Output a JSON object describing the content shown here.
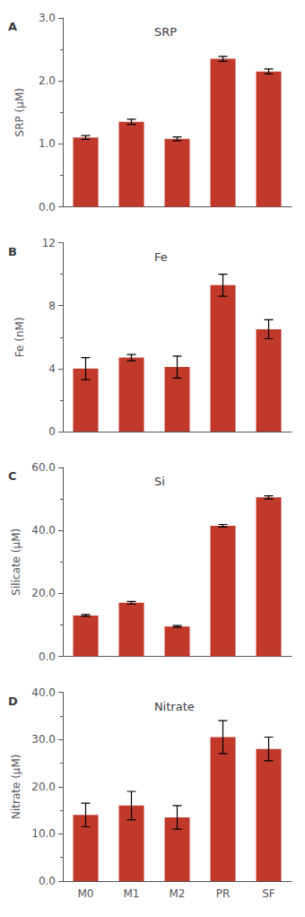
{
  "chart_data": [
    {
      "type": "bar",
      "title": "SRP",
      "annotations": [
        "A"
      ],
      "ylabel": "SRP (μM)",
      "categories": [
        "M0",
        "M1",
        "M2",
        "PR",
        "SF"
      ],
      "values": [
        1.1,
        1.35,
        1.08,
        2.35,
        2.15
      ],
      "errors": [
        0.03,
        0.04,
        0.03,
        0.04,
        0.04
      ],
      "color": "#C0392B",
      "ylim": [
        0.0,
        3.0
      ],
      "yticks": [
        {
          "value": 0.0,
          "label": "0.0"
        },
        {
          "value": 1.0,
          "label": "1.0"
        },
        {
          "value": 2.0,
          "label": "2.0"
        },
        {
          "value": 3.0,
          "label": "3.0"
        }
      ],
      "grid": false,
      "tick_labels": "y"
    },
    {
      "type": "bar",
      "title": "Fe",
      "annotations": [
        "B"
      ],
      "ylabel": "Fe (nM)",
      "categories": [
        "M0",
        "M1",
        "M2",
        "PR",
        "SF"
      ],
      "values": [
        4.0,
        4.7,
        4.1,
        9.3,
        6.5
      ],
      "errors": [
        0.7,
        0.2,
        0.7,
        0.7,
        0.6
      ],
      "color": "#C0392B",
      "ylim": [
        0,
        12
      ],
      "yticks": [
        0,
        4,
        8,
        12
      ],
      "grid": false,
      "tick_labels": "y"
    },
    {
      "type": "bar",
      "title": "Si",
      "annotations": [
        "C"
      ],
      "ylabel": "Silicate (μM)",
      "categories": [
        "M0",
        "M1",
        "M2",
        "PR",
        "SF"
      ],
      "values": [
        13.0,
        17.0,
        9.5,
        41.5,
        50.5
      ],
      "errors": [
        0.3,
        0.4,
        0.3,
        0.4,
        0.5
      ],
      "color": "#C0392B",
      "ylim": [
        0.0,
        60.0
      ],
      "yticks": [
        {
          "value": 0.0,
          "label": "0.0"
        },
        {
          "value": 20.0,
          "label": "20.0"
        },
        {
          "value": 40.0,
          "label": "40.0"
        },
        {
          "value": 60.0,
          "label": "60.0"
        }
      ],
      "grid": false,
      "tick_labels": "y"
    },
    {
      "type": "bar",
      "title": "Nitrate",
      "annotations": [
        "D"
      ],
      "ylabel": "Nitrate (μM)",
      "categories": [
        "M0",
        "M1",
        "M2",
        "PR",
        "SF"
      ],
      "values": [
        14.0,
        16.0,
        13.5,
        30.5,
        28.0
      ],
      "errors": [
        2.5,
        3.0,
        2.5,
        3.5,
        2.5
      ],
      "color": "#C0392B",
      "ylim": [
        0.0,
        40.0
      ],
      "yticks": [
        {
          "value": 0.0,
          "label": "0.0"
        },
        {
          "value": 10.0,
          "label": "10.0"
        },
        {
          "value": 20.0,
          "label": "20.0"
        },
        {
          "value": 30.0,
          "label": "30.0"
        },
        {
          "value": 40.0,
          "label": "40.0"
        }
      ],
      "grid": false
    }
  ]
}
